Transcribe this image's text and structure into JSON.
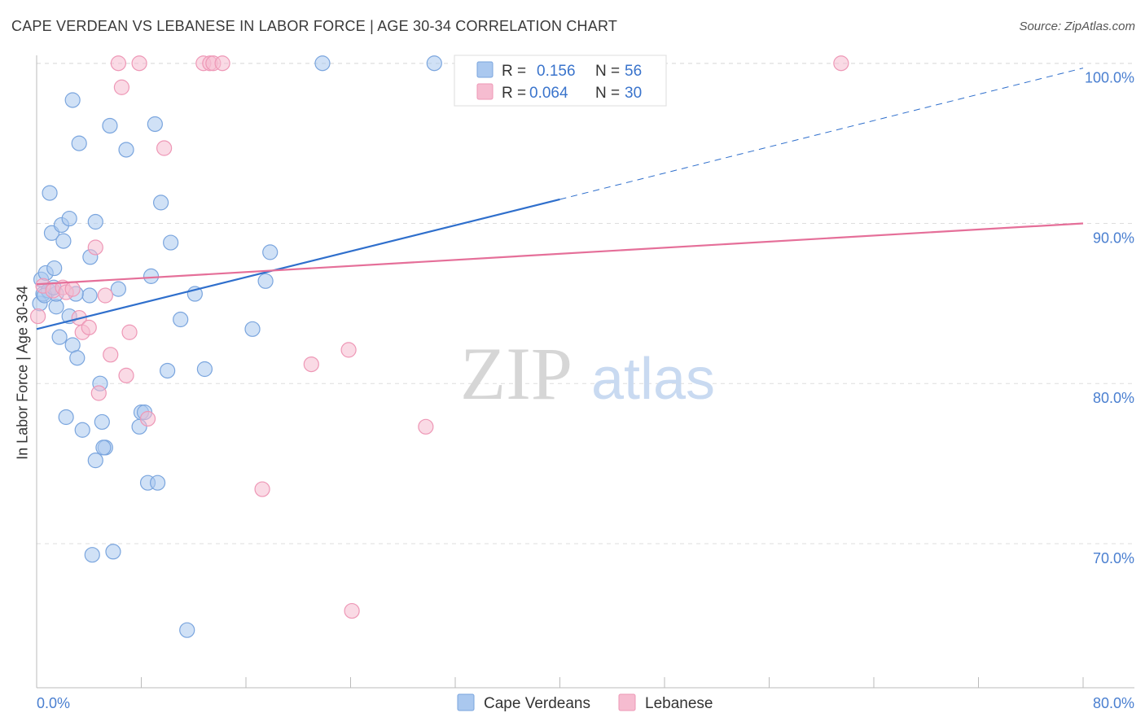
{
  "header": {
    "title": "CAPE VERDEAN VS LEBANESE IN LABOR FORCE | AGE 30-34 CORRELATION CHART",
    "source": "Source: ZipAtlas.com"
  },
  "watermark": {
    "zip": "ZIP",
    "atlas": "atlas"
  },
  "colors": {
    "blue_fill": "#aac8ef",
    "blue_stroke": "#7aa5de",
    "blue_line": "#2f6fcc",
    "pink_fill": "#f6bcd0",
    "pink_stroke": "#ee97b6",
    "pink_line": "#e56f99",
    "grid": "#dddddd",
    "tick_text": "#4a7fd0"
  },
  "stats_legend": {
    "rows": [
      {
        "r_label": "R = ",
        "r_value": "0.156",
        "n_label": "N = ",
        "n_value": "56"
      },
      {
        "r_label": "R = ",
        "r_value": "0.064",
        "n_label": "N = ",
        "n_value": "30"
      }
    ]
  },
  "chart_data": {
    "type": "scatter",
    "title": "CAPE VERDEAN VS LEBANESE IN LABOR FORCE | AGE 30-34 CORRELATION CHART",
    "xlabel": "",
    "ylabel": "In Labor Force | Age 30-34",
    "xlim": [
      0,
      80
    ],
    "ylim": [
      61,
      100.8
    ],
    "x_tick_labels": [
      "0.0%",
      "80.0%"
    ],
    "y_ticks": [
      {
        "value": 70,
        "label": "70.0%"
      },
      {
        "value": 80,
        "label": "80.0%"
      },
      {
        "value": 90,
        "label": "90.0%"
      },
      {
        "value": 100,
        "label": "100.0%"
      }
    ],
    "grid": true,
    "legend": [
      "Cape Verdeans",
      "Lebanese"
    ],
    "series": [
      {
        "name": "Cape Verdeans",
        "color": "#aac8ef",
        "points": [
          [
            0.25,
            85.0
          ],
          [
            0.35,
            86.5
          ],
          [
            0.5,
            85.6
          ],
          [
            0.7,
            86.9
          ],
          [
            0.9,
            85.8
          ],
          [
            1.0,
            91.9
          ],
          [
            1.15,
            89.4
          ],
          [
            1.35,
            87.2
          ],
          [
            1.5,
            84.8
          ],
          [
            1.5,
            85.6
          ],
          [
            1.75,
            82.9
          ],
          [
            1.9,
            89.9
          ],
          [
            2.05,
            88.9
          ],
          [
            2.25,
            77.9
          ],
          [
            2.5,
            90.3
          ],
          [
            2.75,
            82.4
          ],
          [
            2.75,
            97.7
          ],
          [
            3.1,
            81.6
          ],
          [
            3.25,
            95.0
          ],
          [
            3.5,
            77.1
          ],
          [
            4.05,
            85.5
          ],
          [
            4.25,
            69.3
          ],
          [
            4.5,
            75.2
          ],
          [
            4.85,
            80.0
          ],
          [
            5.0,
            77.6
          ],
          [
            5.25,
            76.0
          ],
          [
            5.6,
            96.1
          ],
          [
            5.85,
            69.5
          ],
          [
            6.25,
            85.9
          ],
          [
            6.85,
            94.6
          ],
          [
            7.85,
            77.3
          ],
          [
            8.0,
            78.2
          ],
          [
            8.25,
            78.2
          ],
          [
            8.5,
            73.8
          ],
          [
            8.75,
            86.7
          ],
          [
            9.05,
            96.2
          ],
          [
            9.25,
            73.8
          ],
          [
            9.5,
            91.3
          ],
          [
            10.0,
            80.8
          ],
          [
            10.25,
            88.8
          ],
          [
            11.0,
            84.0
          ],
          [
            11.5,
            64.6
          ],
          [
            12.1,
            85.6
          ],
          [
            12.85,
            80.9
          ],
          [
            16.5,
            83.4
          ],
          [
            17.5,
            86.4
          ],
          [
            17.85,
            88.2
          ],
          [
            21.85,
            100.0
          ],
          [
            30.4,
            100.0
          ],
          [
            0.6,
            85.5
          ],
          [
            1.3,
            86.0
          ],
          [
            2.5,
            84.2
          ],
          [
            3.0,
            85.6
          ],
          [
            4.1,
            87.9
          ],
          [
            4.5,
            90.1
          ],
          [
            5.1,
            76.0
          ]
        ]
      },
      {
        "name": "Lebanese",
        "color": "#f6bcd0",
        "points": [
          [
            0.1,
            84.2
          ],
          [
            0.5,
            86.1
          ],
          [
            1.25,
            85.8
          ],
          [
            2.0,
            86.0
          ],
          [
            2.25,
            85.7
          ],
          [
            2.75,
            85.9
          ],
          [
            3.25,
            84.1
          ],
          [
            3.5,
            83.2
          ],
          [
            4.0,
            83.5
          ],
          [
            4.5,
            88.5
          ],
          [
            4.75,
            79.4
          ],
          [
            5.25,
            85.5
          ],
          [
            5.65,
            81.8
          ],
          [
            6.25,
            100.0
          ],
          [
            6.5,
            98.5
          ],
          [
            6.85,
            80.5
          ],
          [
            7.1,
            83.2
          ],
          [
            7.85,
            100.0
          ],
          [
            8.5,
            77.8
          ],
          [
            9.75,
            94.7
          ],
          [
            12.75,
            100.0
          ],
          [
            13.25,
            100.0
          ],
          [
            13.5,
            100.0
          ],
          [
            14.2,
            100.0
          ],
          [
            17.25,
            73.4
          ],
          [
            21.0,
            81.2
          ],
          [
            23.85,
            82.1
          ],
          [
            24.1,
            65.8
          ],
          [
            29.75,
            77.3
          ],
          [
            61.5,
            100.0
          ]
        ]
      }
    ],
    "trend_lines": [
      {
        "name": "Cape Verdeans",
        "x1": 0,
        "y1": 83.4,
        "x2": 40,
        "y2": 91.5,
        "dashed_to_x": 80,
        "dashed_to_y": 99.7
      },
      {
        "name": "Lebanese",
        "x1": 0,
        "y1": 86.2,
        "x2": 80,
        "y2": 90.0
      }
    ]
  }
}
